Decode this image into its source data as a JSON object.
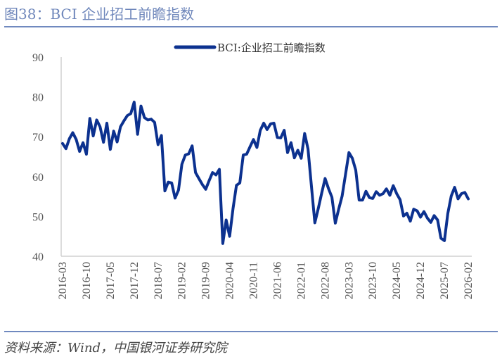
{
  "header": {
    "title": "图38：BCI 企业招工前瞻指数"
  },
  "footer": {
    "source": "资料来源：Wind，中国银河证券研究院"
  },
  "colors": {
    "line": "#0c318f",
    "title": "#6f87bb",
    "rule": "#7089bf"
  },
  "chart_data": {
    "type": "line",
    "title": "图38：BCI 企业招工前瞻指数",
    "xlabel": "",
    "ylabel": "",
    "start": "2016-03",
    "end": "2026-02",
    "frequency": "monthly",
    "ylim": [
      40,
      90
    ],
    "yticks": [
      40,
      50,
      60,
      70,
      80,
      90
    ],
    "xticks": [
      "2016-03",
      "2016-10",
      "2017-05",
      "2017-12",
      "2018-07",
      "2019-02",
      "2019-09",
      "2020-04",
      "2020-11",
      "2021-06",
      "2022-01",
      "2022-08",
      "2023-03",
      "2023-10",
      "2024-05",
      "2024-12",
      "2025-07",
      "2026-02"
    ],
    "grid": false,
    "legend": "top-center",
    "series": [
      {
        "name": "BCI:企业招工前瞻指数",
        "values": [
          68.3,
          67.0,
          69.5,
          71.0,
          69.3,
          66.3,
          68.5,
          65.6,
          74.6,
          70.2,
          74.2,
          72.5,
          68.6,
          73.4,
          66.8,
          71.4,
          68.7,
          72.5,
          74.0,
          75.3,
          75.8,
          78.7,
          70.6,
          77.7,
          74.8,
          74.2,
          74.4,
          73.6,
          68.0,
          70.3,
          56.4,
          58.6,
          58.4,
          54.6,
          56.6,
          63.1,
          65.4,
          65.7,
          67.7,
          61.0,
          59.5,
          58.0,
          56.8,
          59.0,
          61.0,
          60.4,
          61.8,
          43.2,
          49.1,
          45.0,
          51.9,
          57.8,
          58.4,
          65.4,
          65.6,
          67.5,
          69.3,
          67.3,
          71.6,
          73.4,
          71.8,
          73.2,
          73.4,
          69.8,
          69.7,
          71.6,
          66.0,
          68.5,
          64.7,
          66.6,
          64.6,
          70.8,
          66.9,
          57.5,
          48.4,
          52.0,
          55.8,
          59.5,
          57.0,
          54.8,
          48.3,
          51.8,
          55.1,
          60.5,
          66.0,
          64.6,
          61.6,
          54.1,
          54.1,
          56.3,
          54.7,
          54.5,
          56.2,
          55.3,
          55.7,
          56.9,
          55.3,
          57.7,
          55.7,
          54.2,
          50.1,
          50.8,
          48.8,
          51.8,
          51.4,
          49.8,
          51.2,
          49.6,
          48.5,
          50.2,
          49.1,
          44.5,
          43.9,
          50.7,
          55.1,
          57.3,
          54.4,
          55.7,
          56.0,
          54.4
        ]
      }
    ]
  }
}
